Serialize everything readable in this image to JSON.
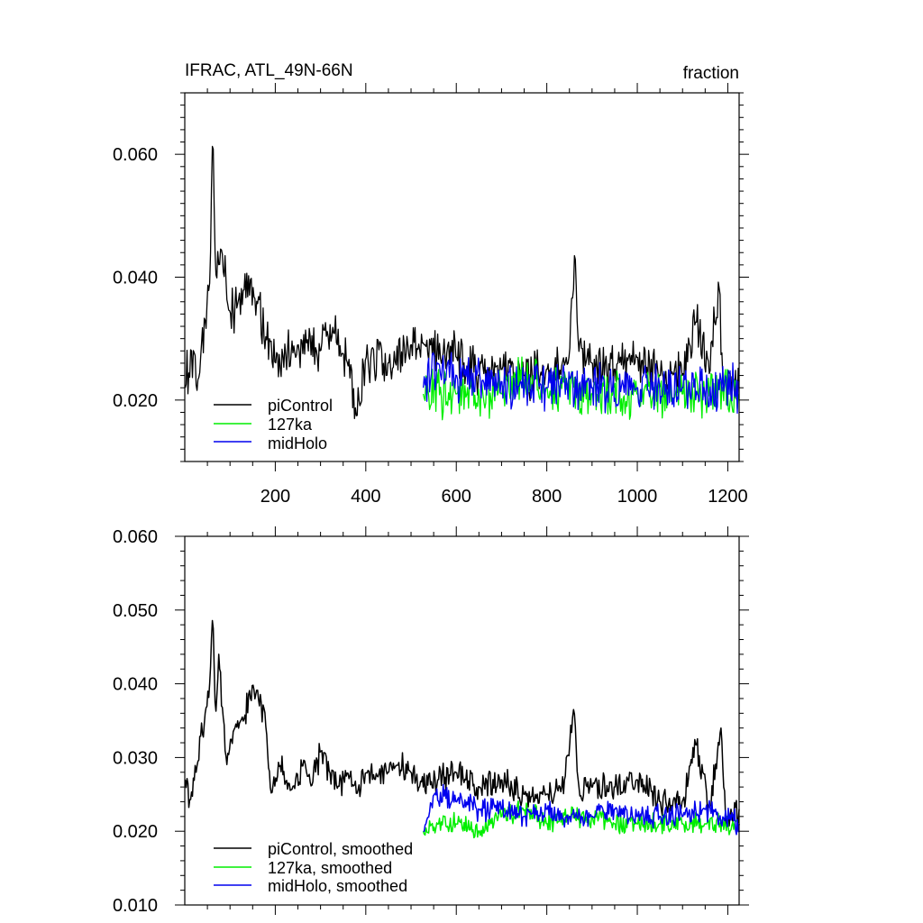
{
  "colors": {
    "piControl": "#000000",
    "127ka": "#00ee00",
    "midHolo": "#0000ee",
    "axes": "#000000",
    "background": "#ffffff"
  },
  "chart_data": [
    {
      "type": "line",
      "title": "IFRAC, ATL_49N-66N",
      "units_label": "fraction",
      "xlim": [
        0,
        1225
      ],
      "ylim": [
        0.01,
        0.07
      ],
      "xticks": [
        200,
        400,
        600,
        800,
        1000,
        1200
      ],
      "xtick_labels": [
        "200",
        "400",
        "600",
        "800",
        "1000",
        "1200"
      ],
      "yticks": [
        0.02,
        0.04,
        0.06
      ],
      "ytick_labels": [
        "0.020",
        "0.040",
        "0.060"
      ],
      "grid": false,
      "legend_position": "bottom-left",
      "series": [
        {
          "name": "piControl",
          "x_range": [
            1,
            1225
          ],
          "keypoints": [
            [
              1,
              0.022
            ],
            [
              15,
              0.028
            ],
            [
              30,
              0.023
            ],
            [
              45,
              0.033
            ],
            [
              55,
              0.039
            ],
            [
              62,
              0.065
            ],
            [
              68,
              0.04
            ],
            [
              80,
              0.045
            ],
            [
              100,
              0.034
            ],
            [
              130,
              0.038
            ],
            [
              160,
              0.036
            ],
            [
              180,
              0.03
            ],
            [
              200,
              0.026
            ],
            [
              250,
              0.029
            ],
            [
              300,
              0.028
            ],
            [
              330,
              0.031
            ],
            [
              360,
              0.026
            ],
            [
              380,
              0.017
            ],
            [
              400,
              0.027
            ],
            [
              450,
              0.026
            ],
            [
              500,
              0.029
            ],
            [
              530,
              0.029
            ],
            [
              600,
              0.027
            ],
            [
              650,
              0.024
            ],
            [
              700,
              0.025
            ],
            [
              750,
              0.024
            ],
            [
              800,
              0.025
            ],
            [
              850,
              0.027
            ],
            [
              862,
              0.045
            ],
            [
              870,
              0.028
            ],
            [
              900,
              0.026
            ],
            [
              950,
              0.025
            ],
            [
              1000,
              0.027
            ],
            [
              1050,
              0.024
            ],
            [
              1100,
              0.024
            ],
            [
              1130,
              0.033
            ],
            [
              1160,
              0.024
            ],
            [
              1180,
              0.04
            ],
            [
              1190,
              0.022
            ],
            [
              1225,
              0.023
            ]
          ],
          "noise_amplitude": 0.0045
        },
        {
          "name": "127ka",
          "x_range": [
            527,
            1225
          ],
          "keypoints": [
            [
              527,
              0.021
            ],
            [
              600,
              0.021
            ],
            [
              700,
              0.021
            ],
            [
              770,
              0.024
            ],
            [
              800,
              0.022
            ],
            [
              900,
              0.021
            ],
            [
              1000,
              0.021
            ],
            [
              1100,
              0.021
            ],
            [
              1225,
              0.021
            ]
          ],
          "noise_amplitude": 0.0045
        },
        {
          "name": "midHolo",
          "x_range": [
            527,
            1225
          ],
          "keypoints": [
            [
              527,
              0.022
            ],
            [
              560,
              0.026
            ],
            [
              600,
              0.024
            ],
            [
              700,
              0.023
            ],
            [
              800,
              0.022
            ],
            [
              900,
              0.022
            ],
            [
              1000,
              0.022
            ],
            [
              1100,
              0.022
            ],
            [
              1225,
              0.022
            ]
          ],
          "noise_amplitude": 0.0045
        }
      ]
    },
    {
      "type": "line",
      "title": "",
      "xlim": [
        0,
        1225
      ],
      "ylim": [
        0.01,
        0.06
      ],
      "xticks": [
        200,
        400,
        600,
        800,
        1000,
        1200
      ],
      "xtick_labels": [],
      "yticks": [
        0.01,
        0.02,
        0.03,
        0.04,
        0.05,
        0.06
      ],
      "ytick_labels": [
        "0.010",
        "0.020",
        "0.030",
        "0.040",
        "0.050",
        "0.060"
      ],
      "grid": false,
      "legend_position": "bottom-left",
      "series": [
        {
          "name": "piControl, smoothed",
          "x_range": [
            1,
            1225
          ],
          "keypoints": [
            [
              1,
              0.027
            ],
            [
              12,
              0.024
            ],
            [
              25,
              0.028
            ],
            [
              45,
              0.036
            ],
            [
              55,
              0.04
            ],
            [
              62,
              0.05
            ],
            [
              68,
              0.035
            ],
            [
              75,
              0.044
            ],
            [
              90,
              0.03
            ],
            [
              110,
              0.034
            ],
            [
              130,
              0.035
            ],
            [
              150,
              0.04
            ],
            [
              165,
              0.037
            ],
            [
              180,
              0.034
            ],
            [
              190,
              0.025
            ],
            [
              210,
              0.029
            ],
            [
              240,
              0.026
            ],
            [
              260,
              0.029
            ],
            [
              280,
              0.026
            ],
            [
              300,
              0.031
            ],
            [
              320,
              0.028
            ],
            [
              340,
              0.026
            ],
            [
              360,
              0.028
            ],
            [
              380,
              0.025
            ],
            [
              400,
              0.028
            ],
            [
              420,
              0.027
            ],
            [
              450,
              0.028
            ],
            [
              470,
              0.029
            ],
            [
              500,
              0.028
            ],
            [
              527,
              0.026
            ],
            [
              560,
              0.027
            ],
            [
              600,
              0.028
            ],
            [
              620,
              0.027
            ],
            [
              650,
              0.026
            ],
            [
              700,
              0.027
            ],
            [
              750,
              0.025
            ],
            [
              800,
              0.025
            ],
            [
              840,
              0.027
            ],
            [
              860,
              0.037
            ],
            [
              870,
              0.026
            ],
            [
              900,
              0.026
            ],
            [
              950,
              0.026
            ],
            [
              1000,
              0.027
            ],
            [
              1050,
              0.024
            ],
            [
              1100,
              0.024
            ],
            [
              1130,
              0.032
            ],
            [
              1160,
              0.023
            ],
            [
              1185,
              0.034
            ],
            [
              1195,
              0.022
            ],
            [
              1225,
              0.023
            ]
          ],
          "noise_amplitude": 0.0022
        },
        {
          "name": "127ka, smoothed",
          "x_range": [
            527,
            1225
          ],
          "keypoints": [
            [
              527,
              0.02
            ],
            [
              560,
              0.021
            ],
            [
              600,
              0.021
            ],
            [
              650,
              0.02
            ],
            [
              700,
              0.022
            ],
            [
              760,
              0.023
            ],
            [
              800,
              0.021
            ],
            [
              850,
              0.022
            ],
            [
              900,
              0.022
            ],
            [
              950,
              0.021
            ],
            [
              1000,
              0.021
            ],
            [
              1050,
              0.021
            ],
            [
              1100,
              0.021
            ],
            [
              1150,
              0.021
            ],
            [
              1225,
              0.021
            ]
          ],
          "noise_amplitude": 0.0016
        },
        {
          "name": "midHolo, smoothed",
          "x_range": [
            527,
            1225
          ],
          "keypoints": [
            [
              527,
              0.02
            ],
            [
              550,
              0.025
            ],
            [
              600,
              0.024
            ],
            [
              650,
              0.023
            ],
            [
              700,
              0.023
            ],
            [
              750,
              0.022
            ],
            [
              800,
              0.023
            ],
            [
              850,
              0.022
            ],
            [
              900,
              0.022
            ],
            [
              950,
              0.023
            ],
            [
              1000,
              0.022
            ],
            [
              1050,
              0.022
            ],
            [
              1100,
              0.022
            ],
            [
              1150,
              0.023
            ],
            [
              1225,
              0.021
            ]
          ],
          "noise_amplitude": 0.0018
        }
      ]
    }
  ]
}
